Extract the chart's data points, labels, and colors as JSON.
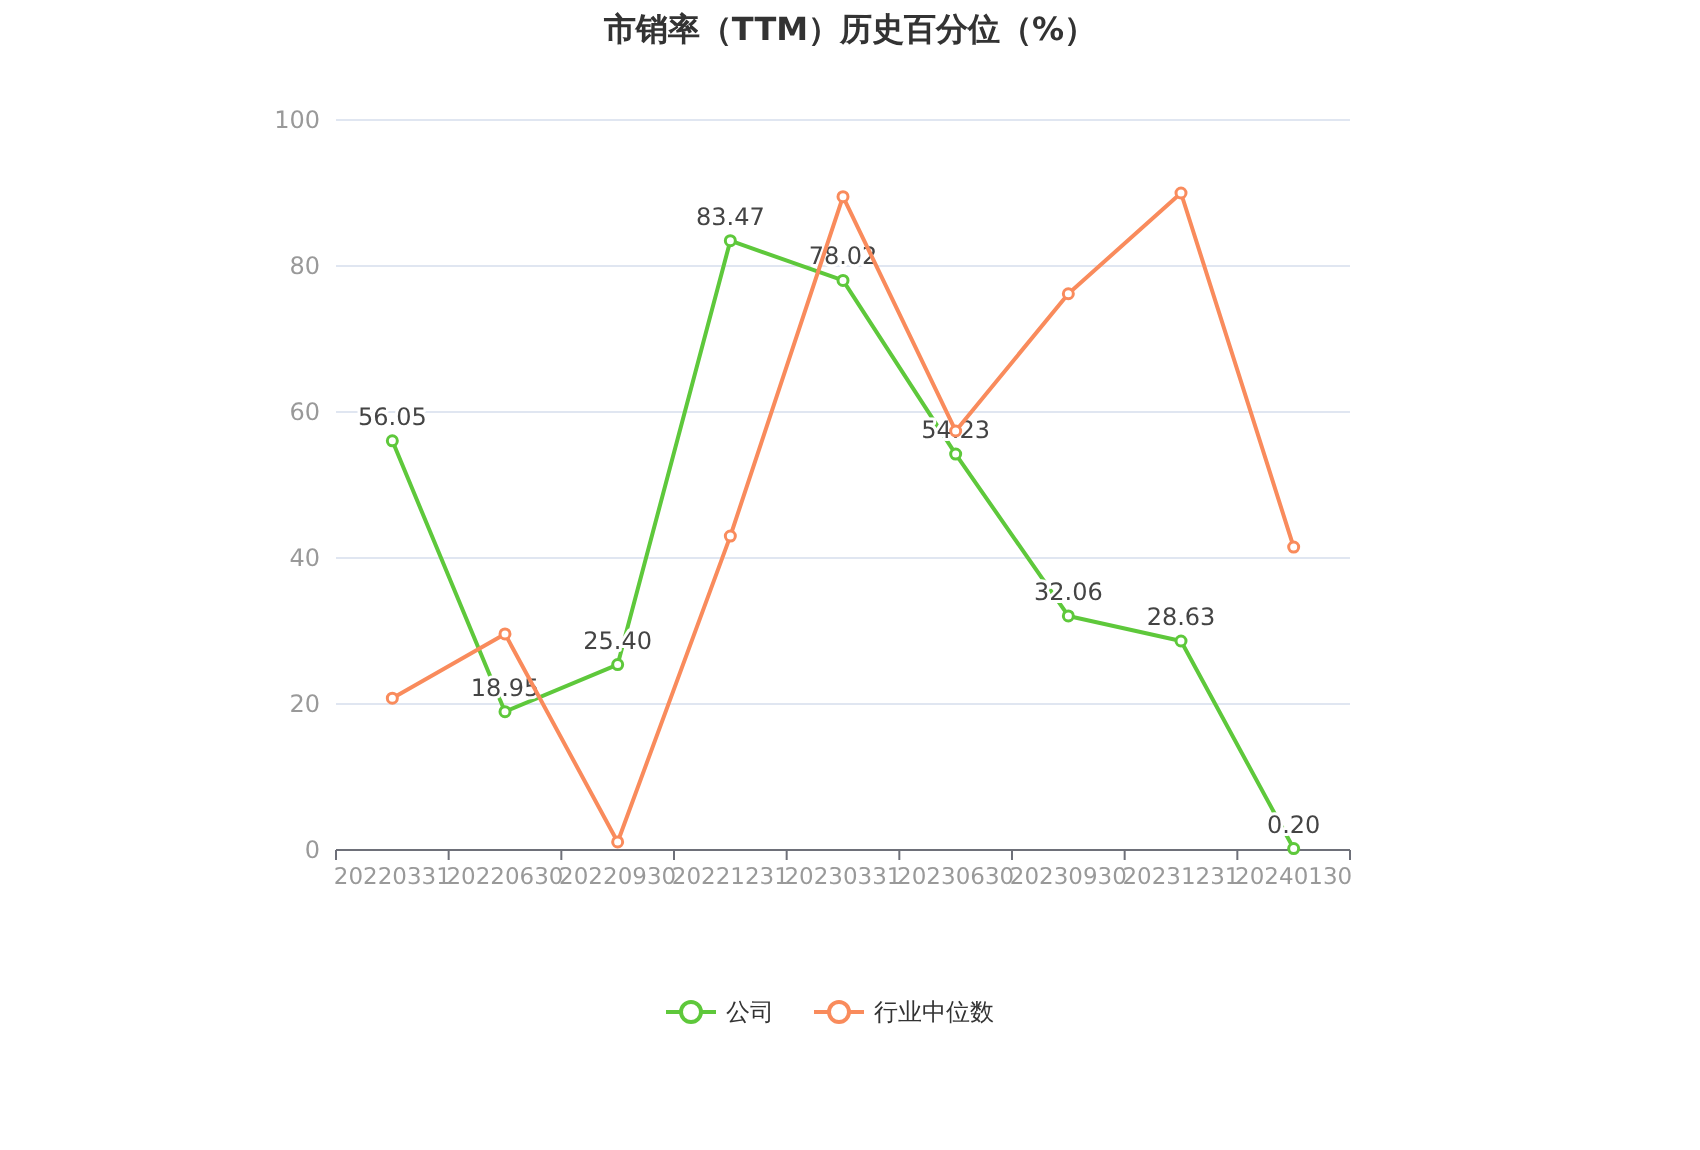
{
  "chart_data": {
    "type": "line",
    "title": "市销率（TTM）历史百分位（%）",
    "categories": [
      "20220331",
      "20220630",
      "20220930",
      "20221231",
      "20230331",
      "20230630",
      "20230930",
      "20231231",
      "20240130"
    ],
    "series": [
      {
        "name": "公司",
        "color": "#5ec83b",
        "values": [
          56.05,
          18.95,
          25.4,
          83.47,
          78.02,
          54.23,
          32.06,
          28.63,
          0.2
        ],
        "value_labels": [
          "56.05",
          "18.95",
          "25.40",
          "83.47",
          "78.02",
          "54.23",
          "32.06",
          "28.63",
          "0.20"
        ]
      },
      {
        "name": "行业中位数",
        "color": "#f98b5c",
        "values": [
          20.8,
          29.6,
          1.1,
          43.0,
          89.5,
          57.4,
          76.2,
          90.0,
          41.5
        ]
      }
    ],
    "ylim": [
      0,
      100
    ],
    "yticks": [
      0,
      20,
      40,
      60,
      80,
      100
    ],
    "grid": "y",
    "legend": "bottom",
    "marker": "circle"
  }
}
